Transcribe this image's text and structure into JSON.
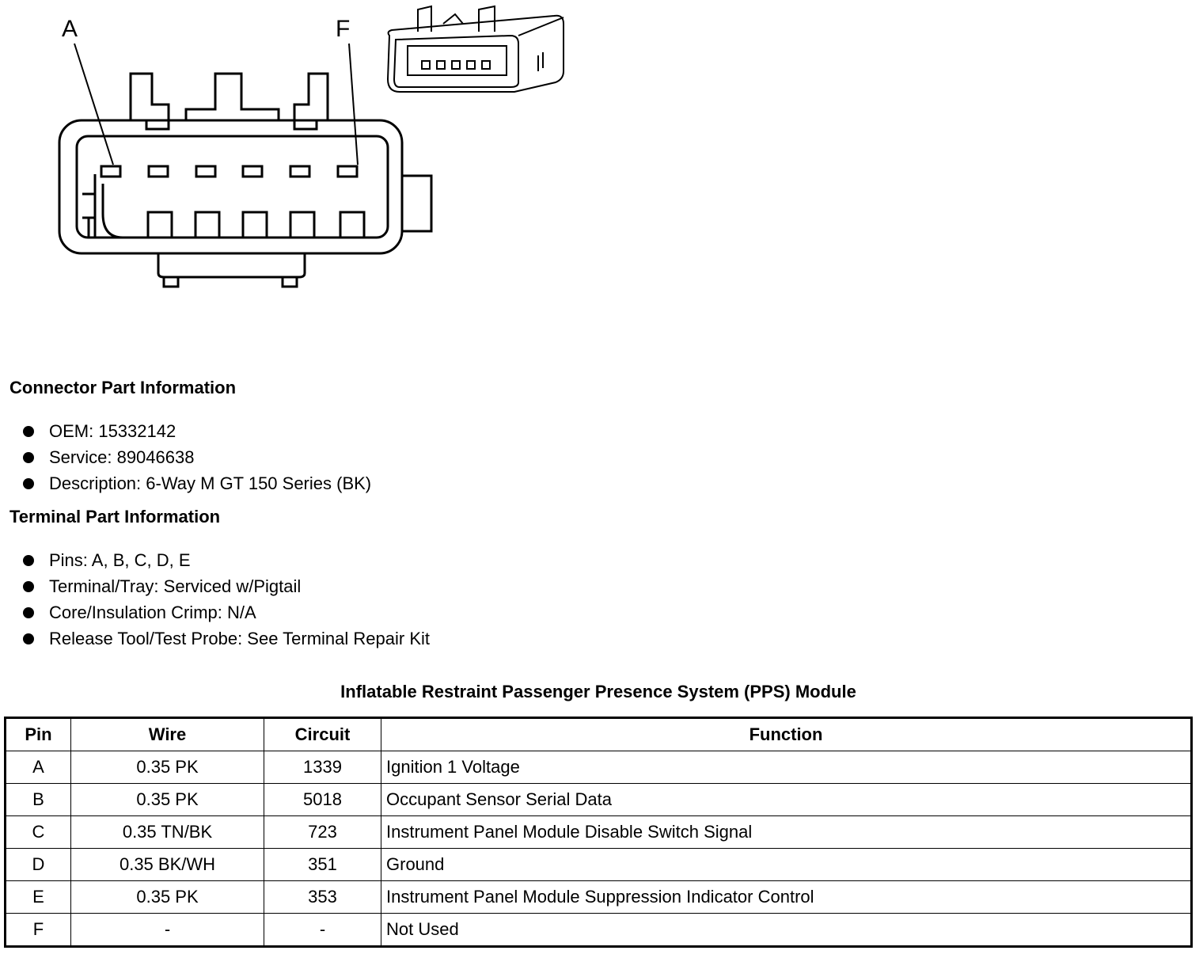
{
  "diagram": {
    "callouts": [
      "A",
      "F"
    ]
  },
  "connector_part": {
    "heading": "Connector Part Information",
    "items": [
      "OEM: 15332142",
      "Service: 89046638",
      "Description: 6-Way M GT 150 Series (BK)"
    ]
  },
  "terminal_part": {
    "heading": "Terminal Part Information",
    "items": [
      "Pins: A, B, C, D, E",
      "Terminal/Tray: Serviced w/Pigtail",
      "Core/Insulation Crimp: N/A",
      "Release Tool/Test Probe: See Terminal Repair Kit"
    ]
  },
  "table": {
    "title": "Inflatable Restraint Passenger Presence System (PPS) Module",
    "headers": [
      "Pin",
      "Wire",
      "Circuit",
      "Function"
    ],
    "rows": [
      [
        "A",
        "0.35 PK",
        "1339",
        "Ignition 1 Voltage"
      ],
      [
        "B",
        "0.35 PK",
        "5018",
        "Occupant Sensor Serial Data"
      ],
      [
        "C",
        "0.35 TN/BK",
        "723",
        "Instrument Panel Module Disable Switch Signal"
      ],
      [
        "D",
        "0.35 BK/WH",
        "351",
        "Ground"
      ],
      [
        "E",
        "0.35 PK",
        "353",
        "Instrument Panel Module Suppression Indicator Control"
      ],
      [
        "F",
        "-",
        "-",
        "Not Used"
      ]
    ]
  }
}
